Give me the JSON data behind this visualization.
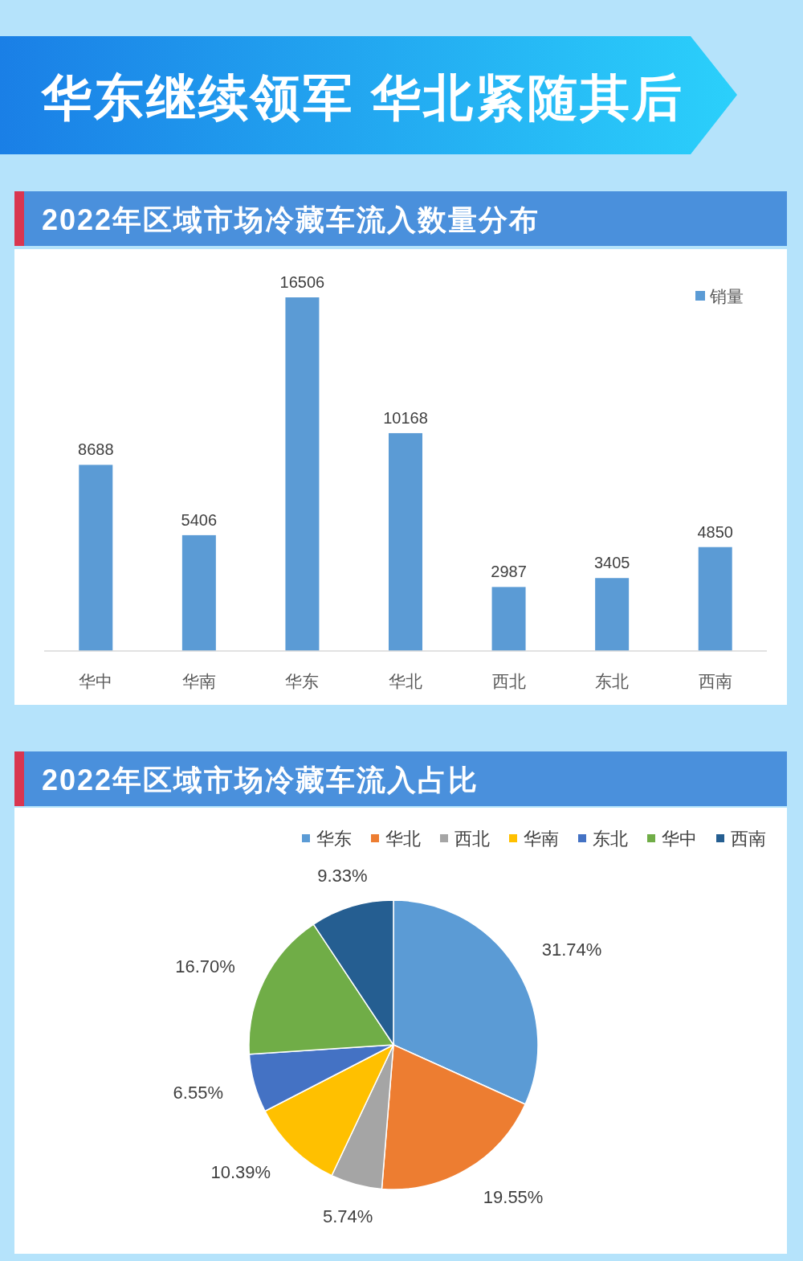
{
  "chart_data": [
    {
      "type": "other",
      "title": "华东继续领军 华北紧随其后"
    },
    {
      "type": "bar",
      "title": "2022年区域市场冷藏车流入数量分布",
      "categories": [
        "华中",
        "华南",
        "华东",
        "华北",
        "西北",
        "东北",
        "西南"
      ],
      "series": [
        {
          "name": "销量",
          "color": "#5b9bd5",
          "values": [
            8688,
            5406,
            16506,
            10168,
            2987,
            3405,
            4850
          ]
        }
      ],
      "data_labels": true,
      "legend": "top right"
    },
    {
      "type": "pie",
      "title": "2022年区域市场冷藏车流入占比",
      "categories": [
        "华东",
        "华北",
        "西北",
        "华南",
        "东北",
        "华中",
        "西南"
      ],
      "values": [
        31.74,
        19.55,
        5.74,
        10.39,
        6.55,
        16.7,
        9.33
      ],
      "colors": [
        "#5b9bd5",
        "#ed7d31",
        "#a5a5a5",
        "#ffc000",
        "#4472c4",
        "#70ad47",
        "#255e91"
      ],
      "value_labels": [
        "31.74%",
        "19.55%",
        "5.74%",
        "10.39%",
        "6.55%",
        "16.70%",
        "9.33%"
      ],
      "legend": "top"
    }
  ]
}
